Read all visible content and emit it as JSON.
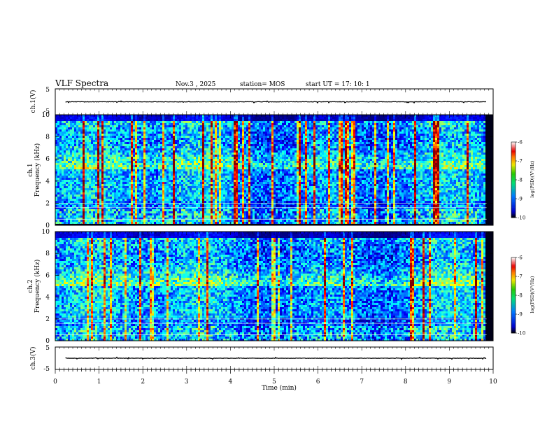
{
  "header": {
    "title": "VLF Spectra",
    "date": "Nov.3  , 2025",
    "station": "station= MOS",
    "start": "start  UT  =   17: 10: 1"
  },
  "chart_data": {
    "type": "heatmap",
    "xlabel": "Time  (min)",
    "xlim": [
      0,
      10
    ],
    "xticks": [
      "0",
      "1",
      "2",
      "3",
      "4",
      "5",
      "6",
      "7",
      "8",
      "9",
      "10"
    ],
    "data_end_min": 9.85,
    "panels": [
      {
        "name": "ch1-waveform",
        "ylabel": "ch.1(V)",
        "yticks": [
          "5",
          "-5"
        ],
        "ylim": [
          -5,
          5
        ],
        "trace_level": 0
      },
      {
        "name": "ch1-spectrogram",
        "ylabel_line1": "ch.1",
        "ylabel_line2": "Frequency (kHz)",
        "yticks": [
          "0",
          "2",
          "4",
          "6",
          "8",
          "10"
        ],
        "ylim": [
          0,
          10
        ],
        "seed": 17,
        "colorbar": {
          "ticks": [
            "-6",
            "-7",
            "-8",
            "-9",
            "-10"
          ],
          "title": "log(PSD)(V²/Hz)",
          "range": [
            -10,
            -6
          ]
        }
      },
      {
        "name": "ch2-spectrogram",
        "ylabel_line1": "ch.2",
        "ylabel_line2": "Frequency (kHz)",
        "yticks": [
          "0",
          "2",
          "4",
          "6",
          "8",
          "10"
        ],
        "ylim": [
          0,
          10
        ],
        "seed": 29,
        "colorbar": {
          "ticks": [
            "-6",
            "-7",
            "-8",
            "-9",
            "-10"
          ],
          "title": "log(PSD)(V²/Hz)",
          "range": [
            -10,
            -6
          ]
        }
      },
      {
        "name": "ch3-waveform",
        "ylabel": "ch.3(V)",
        "yticks": [
          "5",
          "-5"
        ],
        "ylim": [
          -5,
          5
        ],
        "trace_level": 0
      }
    ]
  }
}
